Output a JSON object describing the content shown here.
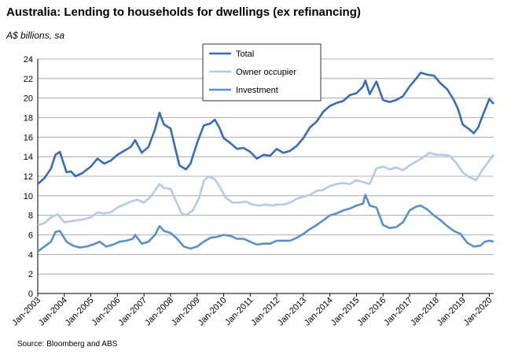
{
  "chart_data": {
    "type": "line",
    "title": "Australia: Lending to households for dwellings (ex refinancing)",
    "ylabel": "A$ billions, sa",
    "source": "Source: Bloomberg and ABS",
    "ylim": [
      0,
      24
    ],
    "yticks": [
      0,
      2,
      4,
      6,
      8,
      10,
      12,
      14,
      16,
      18,
      20,
      22,
      24
    ],
    "xlim": [
      "Jan-2003",
      "Mar-2020"
    ],
    "xticks": [
      "Jan-2003",
      "Jan-2004",
      "Jan-2005",
      "Jan-2006",
      "Jan-2007",
      "Jan-2008",
      "Jan-2009",
      "Jan-2010",
      "Jan-2011",
      "Jan-2012",
      "Jan-2013",
      "Jan-2014",
      "Jan-2015",
      "Jan-2016",
      "Jan-2017",
      "Jan-2018",
      "Jan-2019",
      "Jan-2020"
    ],
    "grid": true,
    "legend_position": "top-center",
    "series": [
      {
        "name": "Total",
        "color": "#3a6cb5",
        "points": [
          [
            "Jan-2003",
            11.2
          ],
          [
            "Apr-2003",
            11.8
          ],
          [
            "Jul-2003",
            12.8
          ],
          [
            "Sep-2003",
            14.2
          ],
          [
            "Nov-2003",
            14.5
          ],
          [
            "Feb-2004",
            12.4
          ],
          [
            "Apr-2004",
            12.5
          ],
          [
            "Jun-2004",
            12.0
          ],
          [
            "Sep-2004",
            12.3
          ],
          [
            "Jan-2005",
            13.0
          ],
          [
            "Apr-2005",
            13.8
          ],
          [
            "Jul-2005",
            13.3
          ],
          [
            "Oct-2005",
            13.6
          ],
          [
            "Jan-2006",
            14.2
          ],
          [
            "Apr-2006",
            14.6
          ],
          [
            "Jul-2006",
            15.0
          ],
          [
            "Sep-2006",
            15.7
          ],
          [
            "Dec-2006",
            14.4
          ],
          [
            "Mar-2007",
            15.0
          ],
          [
            "Jun-2007",
            16.8
          ],
          [
            "Aug-2007",
            18.5
          ],
          [
            "Oct-2007",
            17.3
          ],
          [
            "Jan-2008",
            16.9
          ],
          [
            "Mar-2008",
            15.0
          ],
          [
            "May-2008",
            13.1
          ],
          [
            "Aug-2008",
            12.7
          ],
          [
            "Oct-2008",
            13.3
          ],
          [
            "Jan-2009",
            15.4
          ],
          [
            "Apr-2009",
            17.2
          ],
          [
            "Jul-2009",
            17.4
          ],
          [
            "Sep-2009",
            17.8
          ],
          [
            "Nov-2009",
            17.0
          ],
          [
            "Jan-2010",
            15.9
          ],
          [
            "Apr-2010",
            15.4
          ],
          [
            "Jul-2010",
            14.8
          ],
          [
            "Oct-2010",
            14.9
          ],
          [
            "Jan-2011",
            14.5
          ],
          [
            "Apr-2011",
            13.8
          ],
          [
            "Jul-2011",
            14.2
          ],
          [
            "Oct-2011",
            14.1
          ],
          [
            "Jan-2012",
            14.8
          ],
          [
            "Apr-2012",
            14.4
          ],
          [
            "Jul-2012",
            14.6
          ],
          [
            "Oct-2012",
            15.1
          ],
          [
            "Jan-2013",
            15.9
          ],
          [
            "Apr-2013",
            17.0
          ],
          [
            "Jul-2013",
            17.6
          ],
          [
            "Oct-2013",
            18.6
          ],
          [
            "Jan-2014",
            19.2
          ],
          [
            "Apr-2014",
            19.5
          ],
          [
            "Jul-2014",
            19.7
          ],
          [
            "Oct-2014",
            20.3
          ],
          [
            "Jan-2015",
            20.5
          ],
          [
            "Apr-2015",
            21.2
          ],
          [
            "May-2015",
            21.8
          ],
          [
            "Jul-2015",
            20.4
          ],
          [
            "Oct-2015",
            21.7
          ],
          [
            "Jan-2016",
            19.8
          ],
          [
            "Apr-2016",
            19.6
          ],
          [
            "Jul-2016",
            19.8
          ],
          [
            "Oct-2016",
            20.2
          ],
          [
            "Jan-2017",
            21.2
          ],
          [
            "Apr-2017",
            22.0
          ],
          [
            "Jun-2017",
            22.6
          ],
          [
            "Sep-2017",
            22.4
          ],
          [
            "Dec-2017",
            22.3
          ],
          [
            "Mar-2018",
            21.5
          ],
          [
            "Jun-2018",
            20.9
          ],
          [
            "Sep-2018",
            19.8
          ],
          [
            "Nov-2018",
            18.8
          ],
          [
            "Jan-2019",
            17.3
          ],
          [
            "Apr-2019",
            16.8
          ],
          [
            "Jun-2019",
            16.4
          ],
          [
            "Aug-2019",
            17.0
          ],
          [
            "Oct-2019",
            18.2
          ],
          [
            "Jan-2020",
            19.9
          ],
          [
            "Mar-2020",
            19.4
          ]
        ]
      },
      {
        "name": "Owner occupier",
        "color": "#b7c8e4",
        "points": [
          [
            "Jan-2003",
            7.0
          ],
          [
            "Apr-2003",
            7.2
          ],
          [
            "Jul-2003",
            7.8
          ],
          [
            "Oct-2003",
            8.1
          ],
          [
            "Jan-2004",
            7.3
          ],
          [
            "Apr-2004",
            7.4
          ],
          [
            "Jul-2004",
            7.5
          ],
          [
            "Oct-2004",
            7.6
          ],
          [
            "Jan-2005",
            7.8
          ],
          [
            "Apr-2005",
            8.3
          ],
          [
            "Jul-2005",
            8.2
          ],
          [
            "Oct-2005",
            8.3
          ],
          [
            "Jan-2006",
            8.8
          ],
          [
            "Apr-2006",
            9.1
          ],
          [
            "Jul-2006",
            9.4
          ],
          [
            "Oct-2006",
            9.6
          ],
          [
            "Jan-2007",
            9.3
          ],
          [
            "Apr-2007",
            9.9
          ],
          [
            "Aug-2007",
            11.2
          ],
          [
            "Oct-2007",
            10.8
          ],
          [
            "Jan-2008",
            10.7
          ],
          [
            "Apr-2008",
            9.2
          ],
          [
            "Jun-2008",
            8.2
          ],
          [
            "Aug-2008",
            8.0
          ],
          [
            "Nov-2008",
            8.5
          ],
          [
            "Feb-2009",
            9.8
          ],
          [
            "Apr-2009",
            11.5
          ],
          [
            "Jun-2009",
            12.0
          ],
          [
            "Sep-2009",
            11.7
          ],
          [
            "Nov-2009",
            11.0
          ],
          [
            "Feb-2010",
            9.8
          ],
          [
            "May-2010",
            9.3
          ],
          [
            "Aug-2010",
            9.3
          ],
          [
            "Nov-2010",
            9.4
          ],
          [
            "Feb-2011",
            9.1
          ],
          [
            "May-2011",
            9.0
          ],
          [
            "Aug-2011",
            9.1
          ],
          [
            "Nov-2011",
            9.0
          ],
          [
            "Jan-2012",
            9.1
          ],
          [
            "Apr-2012",
            9.1
          ],
          [
            "Jul-2012",
            9.3
          ],
          [
            "Oct-2012",
            9.7
          ],
          [
            "Jan-2013",
            9.9
          ],
          [
            "Apr-2013",
            10.1
          ],
          [
            "Jul-2013",
            10.5
          ],
          [
            "Oct-2013",
            10.6
          ],
          [
            "Jan-2014",
            11.0
          ],
          [
            "Apr-2014",
            11.2
          ],
          [
            "Jul-2014",
            11.3
          ],
          [
            "Oct-2014",
            11.2
          ],
          [
            "Jan-2015",
            11.6
          ],
          [
            "Apr-2015",
            11.4
          ],
          [
            "Jul-2015",
            11.2
          ],
          [
            "Oct-2015",
            12.8
          ],
          [
            "Jan-2016",
            13.0
          ],
          [
            "Apr-2016",
            12.7
          ],
          [
            "Jul-2016",
            12.9
          ],
          [
            "Oct-2016",
            12.6
          ],
          [
            "Jan-2017",
            13.1
          ],
          [
            "Apr-2017",
            13.5
          ],
          [
            "Jul-2017",
            13.9
          ],
          [
            "Oct-2017",
            14.4
          ],
          [
            "Jan-2018",
            14.2
          ],
          [
            "Apr-2018",
            14.2
          ],
          [
            "Jul-2018",
            14.1
          ],
          [
            "Oct-2018",
            13.4
          ],
          [
            "Jan-2019",
            12.4
          ],
          [
            "Apr-2019",
            11.9
          ],
          [
            "Jul-2019",
            11.6
          ],
          [
            "Oct-2019",
            12.7
          ],
          [
            "Jan-2020",
            13.6
          ],
          [
            "Mar-2020",
            14.2
          ]
        ]
      },
      {
        "name": "Investment",
        "color": "#5a8fc8",
        "points": [
          [
            "Jan-2003",
            4.3
          ],
          [
            "Apr-2003",
            4.8
          ],
          [
            "Jul-2003",
            5.3
          ],
          [
            "Sep-2003",
            6.3
          ],
          [
            "Nov-2003",
            6.4
          ],
          [
            "Feb-2004",
            5.3
          ],
          [
            "May-2004",
            4.9
          ],
          [
            "Aug-2004",
            4.7
          ],
          [
            "Nov-2004",
            4.8
          ],
          [
            "Feb-2005",
            5.0
          ],
          [
            "May-2005",
            5.3
          ],
          [
            "Aug-2005",
            4.8
          ],
          [
            "Nov-2005",
            5.0
          ],
          [
            "Feb-2006",
            5.3
          ],
          [
            "May-2006",
            5.4
          ],
          [
            "Aug-2006",
            5.6
          ],
          [
            "Sep-2006",
            6.0
          ],
          [
            "Dec-2006",
            5.1
          ],
          [
            "Mar-2007",
            5.3
          ],
          [
            "Jun-2007",
            6.0
          ],
          [
            "Aug-2007",
            6.9
          ],
          [
            "Oct-2007",
            6.4
          ],
          [
            "Jan-2008",
            6.2
          ],
          [
            "Apr-2008",
            5.6
          ],
          [
            "Jul-2008",
            4.8
          ],
          [
            "Oct-2008",
            4.6
          ],
          [
            "Jan-2009",
            4.8
          ],
          [
            "Apr-2009",
            5.3
          ],
          [
            "Jul-2009",
            5.7
          ],
          [
            "Oct-2009",
            5.8
          ],
          [
            "Jan-2010",
            6.0
          ],
          [
            "Apr-2010",
            5.9
          ],
          [
            "Jul-2010",
            5.6
          ],
          [
            "Oct-2010",
            5.6
          ],
          [
            "Jan-2011",
            5.3
          ],
          [
            "Apr-2011",
            5.0
          ],
          [
            "Jul-2011",
            5.1
          ],
          [
            "Oct-2011",
            5.1
          ],
          [
            "Jan-2012",
            5.4
          ],
          [
            "Apr-2012",
            5.4
          ],
          [
            "Jul-2012",
            5.4
          ],
          [
            "Oct-2012",
            5.7
          ],
          [
            "Jan-2013",
            6.1
          ],
          [
            "Apr-2013",
            6.6
          ],
          [
            "Jul-2013",
            7.0
          ],
          [
            "Oct-2013",
            7.5
          ],
          [
            "Jan-2014",
            8.0
          ],
          [
            "Apr-2014",
            8.2
          ],
          [
            "Jul-2014",
            8.5
          ],
          [
            "Oct-2014",
            8.7
          ],
          [
            "Jan-2015",
            9.0
          ],
          [
            "Apr-2015",
            9.2
          ],
          [
            "May-2015",
            10.1
          ],
          [
            "Jul-2015",
            9.0
          ],
          [
            "Oct-2015",
            8.8
          ],
          [
            "Jan-2016",
            7.0
          ],
          [
            "Apr-2016",
            6.7
          ],
          [
            "Jul-2016",
            6.8
          ],
          [
            "Oct-2016",
            7.3
          ],
          [
            "Jan-2017",
            8.5
          ],
          [
            "Apr-2017",
            8.9
          ],
          [
            "Jun-2017",
            9.0
          ],
          [
            "Sep-2017",
            8.6
          ],
          [
            "Dec-2017",
            8.0
          ],
          [
            "Mar-2018",
            7.5
          ],
          [
            "Jun-2018",
            6.9
          ],
          [
            "Sep-2018",
            6.4
          ],
          [
            "Dec-2018",
            6.1
          ],
          [
            "Mar-2019",
            5.2
          ],
          [
            "Jun-2019",
            4.8
          ],
          [
            "Sep-2019",
            4.9
          ],
          [
            "Nov-2019",
            5.3
          ],
          [
            "Jan-2020",
            5.4
          ],
          [
            "Mar-2020",
            5.3
          ]
        ]
      }
    ]
  }
}
